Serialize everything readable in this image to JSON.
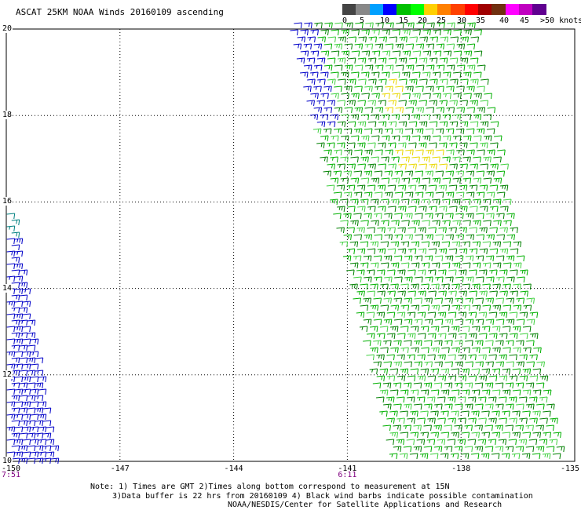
{
  "title": "ASCAT 25KM NOAA Winds 20160109 ascending",
  "colorbar": {
    "segments": [
      {
        "color": "#444444"
      },
      {
        "color": "#888888"
      },
      {
        "color": "#00a0ff"
      },
      {
        "color": "#0000ff"
      },
      {
        "color": "#00c000"
      },
      {
        "color": "#00ff00"
      },
      {
        "color": "#ffd000"
      },
      {
        "color": "#ff8000"
      },
      {
        "color": "#ff4000"
      },
      {
        "color": "#ff0000"
      },
      {
        "color": "#a00000"
      },
      {
        "color": "#703010"
      },
      {
        "color": "#ff00ff"
      },
      {
        "color": "#c000c0"
      },
      {
        "color": "#600090"
      }
    ],
    "labels": [
      "0",
      "5",
      "10",
      "15",
      "20",
      "25",
      "30",
      "35",
      "40",
      "45",
      ">50 knots"
    ]
  },
  "map": {
    "lat_labels": [
      "20",
      "18",
      "16",
      "14",
      "12",
      "10"
    ],
    "lon_labels": [
      "-150",
      "-147",
      "-144",
      "-141",
      "-138",
      "-135"
    ],
    "lat_range": [
      10,
      20
    ],
    "lon_range": [
      -150,
      -135
    ],
    "time_labels": [
      {
        "text": "7:51",
        "lon": -150
      },
      {
        "text": "6:11",
        "lon": -141
      }
    ],
    "colors": {
      "swath_blue": "#0000c8",
      "swath_teal": "#008080",
      "swath_green_dark": "#008000",
      "swath_green": "#00b000",
      "swath_green_light": "#40d040",
      "swath_yellow": "#e8d800",
      "grid": "#000000"
    }
  },
  "notes": [
    "Note: 1) Times are GMT 2)Times along bottom correspond to measurement at 15N",
    "3)Data buffer is 22 hrs from 20160109 4) Black wind barbs indicate possible contamination",
    "NOAA/NESDIS/Center for Satellite Applications and Research"
  ]
}
